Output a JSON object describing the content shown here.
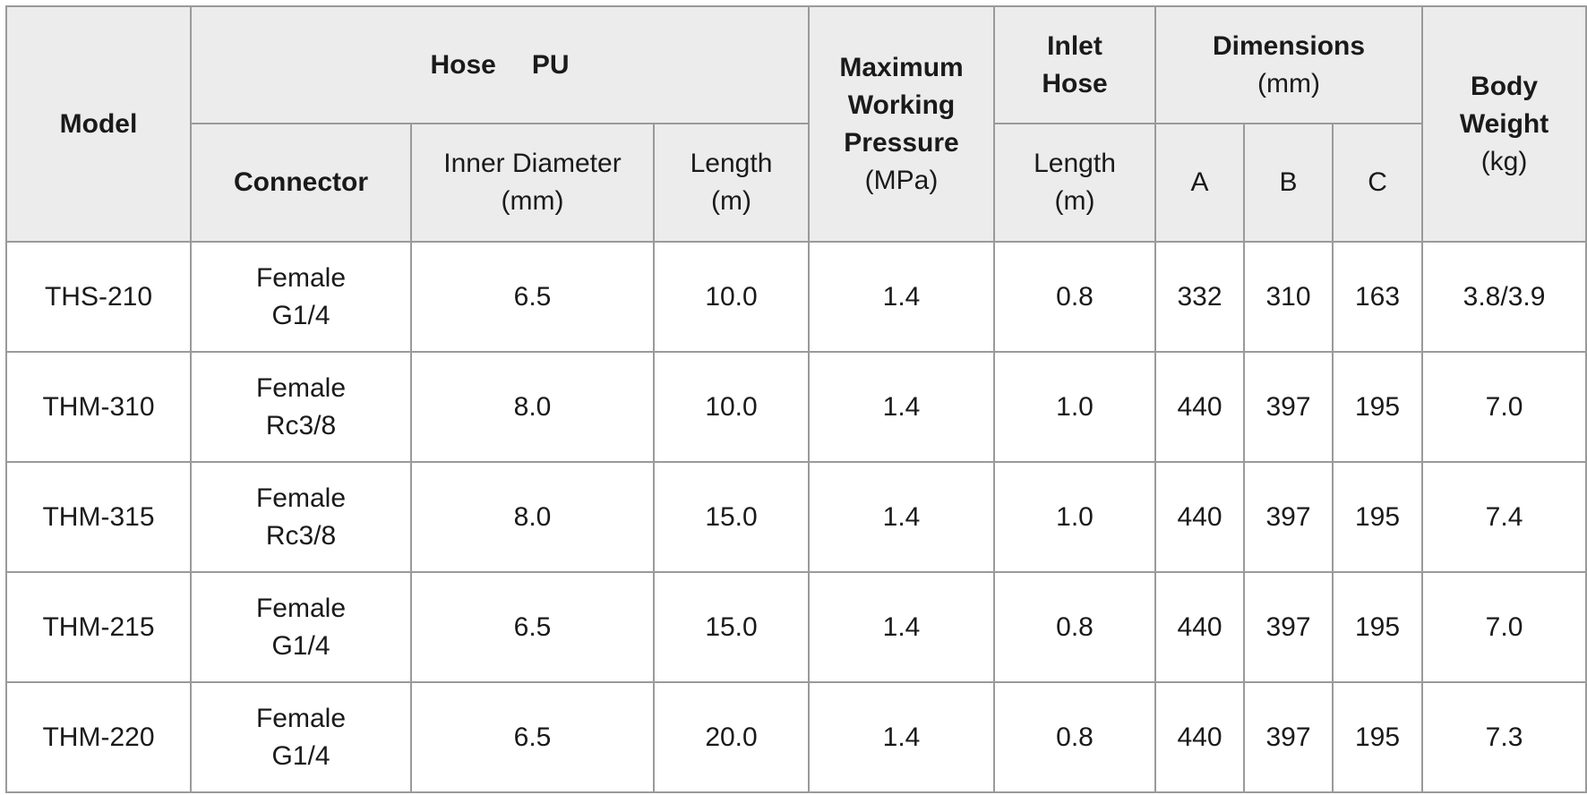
{
  "header": {
    "model": "Model",
    "hose": "Hose",
    "pu": "PU",
    "connector": "Connector",
    "inner_diameter": [
      "Inner Diameter",
      "(mm)"
    ],
    "hose_length": [
      "Length",
      "(m)"
    ],
    "pressure": [
      "Maximum",
      "Working",
      "Pressure"
    ],
    "pressure_unit": "(MPa)",
    "inlet_hose": [
      "Inlet",
      "Hose"
    ],
    "inlet_length": [
      "Length",
      "(m)"
    ],
    "dimensions": "Dimensions",
    "dimensions_unit": "(mm)",
    "a": "A",
    "b": "B",
    "c": "C",
    "body_weight": [
      "Body",
      "Weight"
    ],
    "weight_unit": "(kg)"
  },
  "table": {
    "rows": [
      [
        "THS-210",
        [
          "Female",
          "G1/4"
        ],
        "6.5",
        "10.0",
        "1.4",
        "0.8",
        "332",
        "310",
        "163",
        "3.8/3.9"
      ],
      [
        "THM-310",
        [
          "Female",
          "Rc3/8"
        ],
        "8.0",
        "10.0",
        "1.4",
        "1.0",
        "440",
        "397",
        "195",
        "7.0"
      ],
      [
        "THM-315",
        [
          "Female",
          "Rc3/8"
        ],
        "8.0",
        "15.0",
        "1.4",
        "1.0",
        "440",
        "397",
        "195",
        "7.4"
      ],
      [
        "THM-215",
        [
          "Female",
          "G1/4"
        ],
        "6.5",
        "15.0",
        "1.4",
        "0.8",
        "440",
        "397",
        "195",
        "7.0"
      ],
      [
        "THM-220",
        [
          "Female",
          "G1/4"
        ],
        "6.5",
        "20.0",
        "1.4",
        "0.8",
        "440",
        "397",
        "195",
        "7.3"
      ]
    ]
  }
}
